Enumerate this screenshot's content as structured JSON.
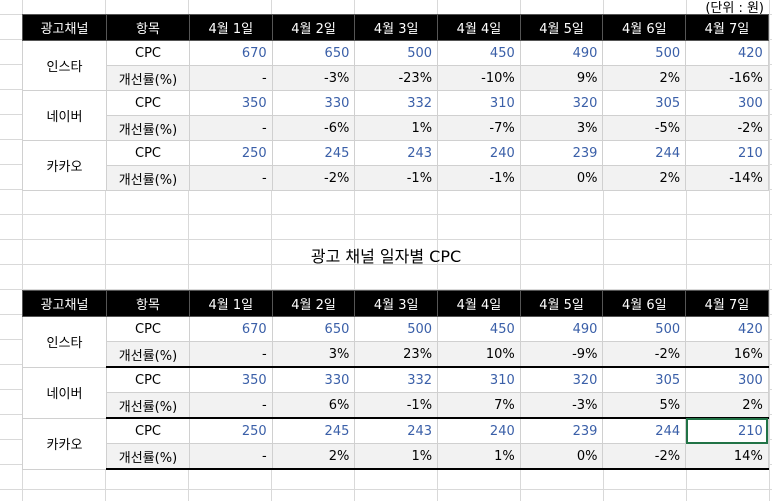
{
  "unit_note": "(단위 : 원)",
  "caption": "광고 채널 일자별 CPC",
  "headers": [
    "광고채널",
    "항목",
    "4월 1일",
    "4월 2일",
    "4월 3일",
    "4월 4일",
    "4월 5일",
    "4월 6일",
    "4월 7일"
  ],
  "table1": [
    {
      "channel": "인스타",
      "cpc_label": "CPC",
      "cpc": [
        "670",
        "650",
        "500",
        "450",
        "490",
        "500",
        "420"
      ],
      "rate_label": "개선률(%)",
      "rate": [
        "-",
        "-3%",
        "-23%",
        "-10%",
        "9%",
        "2%",
        "-16%"
      ]
    },
    {
      "channel": "네이버",
      "cpc_label": "CPC",
      "cpc": [
        "350",
        "330",
        "332",
        "310",
        "320",
        "305",
        "300"
      ],
      "rate_label": "개선률(%)",
      "rate": [
        "-",
        "-6%",
        "1%",
        "-7%",
        "3%",
        "-5%",
        "-2%"
      ]
    },
    {
      "channel": "카카오",
      "cpc_label": "CPC",
      "cpc": [
        "250",
        "245",
        "243",
        "240",
        "239",
        "244",
        "210"
      ],
      "rate_label": "개선률(%)",
      "rate": [
        "-",
        "-2%",
        "-1%",
        "-1%",
        "0%",
        "2%",
        "-14%"
      ]
    }
  ],
  "table2": [
    {
      "channel": "인스타",
      "cpc_label": "CPC",
      "cpc": [
        "670",
        "650",
        "500",
        "450",
        "490",
        "500",
        "420"
      ],
      "rate_label": "개선률(%)",
      "rate": [
        "-",
        "3%",
        "23%",
        "10%",
        "-9%",
        "-2%",
        "16%"
      ]
    },
    {
      "channel": "네이버",
      "cpc_label": "CPC",
      "cpc": [
        "350",
        "330",
        "332",
        "310",
        "320",
        "305",
        "300"
      ],
      "rate_label": "개선률(%)",
      "rate": [
        "-",
        "6%",
        "-1%",
        "7%",
        "-3%",
        "5%",
        "2%"
      ]
    },
    {
      "channel": "카카오",
      "cpc_label": "CPC",
      "cpc": [
        "250",
        "245",
        "243",
        "240",
        "239",
        "244",
        "210"
      ],
      "rate_label": "개선률(%)",
      "rate": [
        "-",
        "2%",
        "1%",
        "1%",
        "0%",
        "-2%",
        "14%"
      ]
    }
  ],
  "colors": {
    "header_bg": "#000000",
    "cpc_text": "#3a5fa8",
    "rate_bg": "#f2f2f2",
    "selection": "#217346"
  }
}
